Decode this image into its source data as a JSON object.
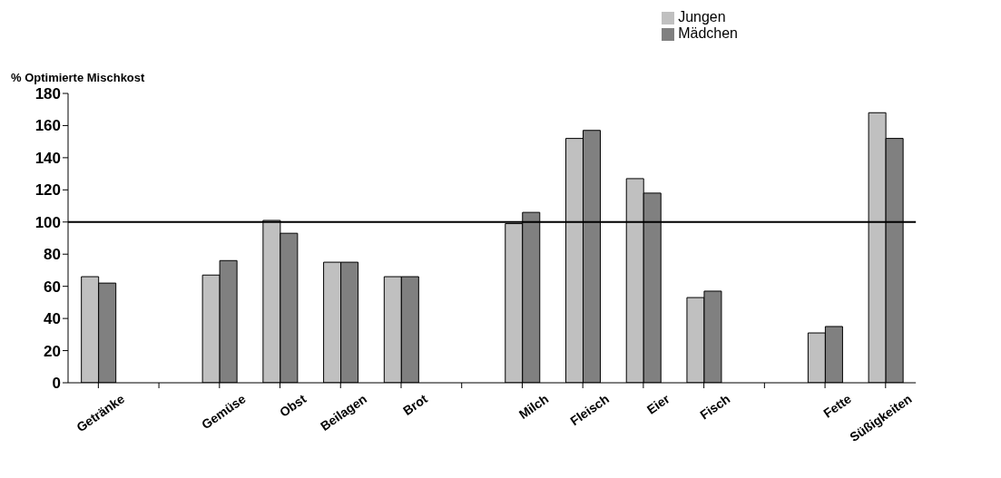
{
  "chart_data": {
    "type": "bar",
    "ylabel": "% Optimierte Mischkost",
    "categories": [
      "Getränke",
      null,
      "Gemüse",
      "Obst",
      "Beilagen",
      "Brot",
      null,
      "Milch",
      "Fleisch",
      "Eier",
      "Fisch",
      null,
      "Fette",
      "Süßigkeiten"
    ],
    "series": [
      {
        "name": "Jungen",
        "color": "#c0c0c0",
        "values": [
          66,
          null,
          67,
          101,
          75,
          66,
          null,
          99,
          152,
          127,
          53,
          null,
          31,
          168
        ]
      },
      {
        "name": "Mädchen",
        "color": "#808080",
        "values": [
          62,
          null,
          76,
          93,
          75,
          66,
          null,
          106,
          157,
          118,
          57,
          null,
          35,
          152
        ]
      }
    ],
    "ylim": [
      0,
      180
    ],
    "yticks": [
      0,
      20,
      40,
      60,
      80,
      100,
      120,
      140,
      160,
      180
    ],
    "ref_lines": [
      {
        "axis": "y",
        "value": 100,
        "color": "#000000"
      }
    ],
    "grid": false,
    "legend": "top right"
  }
}
